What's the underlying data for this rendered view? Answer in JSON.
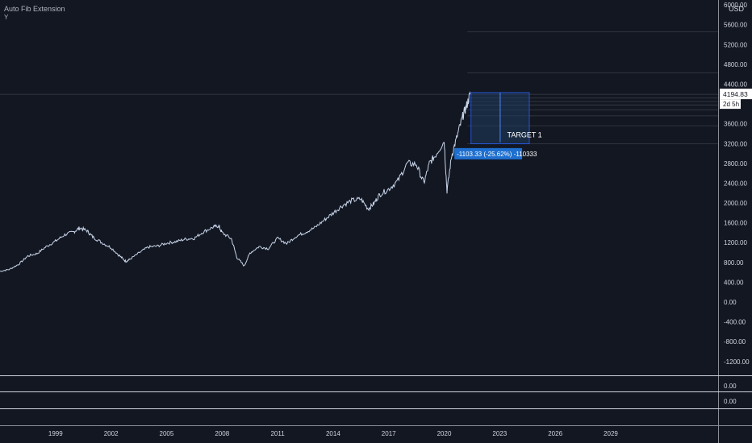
{
  "indicator": {
    "title": "Auto Fib Extension",
    "subtitle": "Y"
  },
  "currency": "USD",
  "price": {
    "last_label": "4194.83",
    "countdown": "2d 5h"
  },
  "annotation": {
    "target_label": "TARGET 1",
    "measure_label": "-1103.33 (-25.62%) -110333"
  },
  "sub_panes": [
    {
      "value_label": "0.00"
    },
    {
      "value_label": "0.00"
    }
  ],
  "colors": {
    "background": "#131722",
    "price_line": "#c8d6ea",
    "measure_fill": "#1f3a5f",
    "measure_stroke": "#2962ff",
    "label_bg": "#1e6fcf",
    "grid_line": "#3a3f4b"
  },
  "chart_data": {
    "type": "line",
    "series": [
      {
        "values_by_year": [
          [
            1996.0,
            620
          ],
          [
            1996.5,
            660
          ],
          [
            1997.0,
            760
          ],
          [
            1997.5,
            930
          ],
          [
            1998.0,
            980
          ],
          [
            1998.5,
            1120
          ],
          [
            1999.0,
            1230
          ],
          [
            1999.5,
            1360
          ],
          [
            2000.0,
            1420
          ],
          [
            2000.3,
            1500
          ],
          [
            2000.7,
            1440
          ],
          [
            2001.0,
            1320
          ],
          [
            2001.5,
            1200
          ],
          [
            2002.0,
            1100
          ],
          [
            2002.5,
            920
          ],
          [
            2002.8,
            820
          ],
          [
            2003.0,
            860
          ],
          [
            2003.5,
            990
          ],
          [
            2004.0,
            1110
          ],
          [
            2004.5,
            1130
          ],
          [
            2005.0,
            1190
          ],
          [
            2005.5,
            1220
          ],
          [
            2006.0,
            1270
          ],
          [
            2006.5,
            1290
          ],
          [
            2007.0,
            1420
          ],
          [
            2007.5,
            1510
          ],
          [
            2007.8,
            1540
          ],
          [
            2008.0,
            1400
          ],
          [
            2008.5,
            1280
          ],
          [
            2008.8,
            900
          ],
          [
            2009.2,
            730
          ],
          [
            2009.5,
            990
          ],
          [
            2010.0,
            1120
          ],
          [
            2010.5,
            1080
          ],
          [
            2011.0,
            1290
          ],
          [
            2011.5,
            1180
          ],
          [
            2012.0,
            1330
          ],
          [
            2012.5,
            1410
          ],
          [
            2013.0,
            1500
          ],
          [
            2013.5,
            1650
          ],
          [
            2014.0,
            1800
          ],
          [
            2014.5,
            1950
          ],
          [
            2015.0,
            2050
          ],
          [
            2015.5,
            2080
          ],
          [
            2015.9,
            1880
          ],
          [
            2016.2,
            1990
          ],
          [
            2016.5,
            2170
          ],
          [
            2017.0,
            2280
          ],
          [
            2017.5,
            2450
          ],
          [
            2018.0,
            2800
          ],
          [
            2018.5,
            2780
          ],
          [
            2018.9,
            2400
          ],
          [
            2019.2,
            2800
          ],
          [
            2019.5,
            2950
          ],
          [
            2020.0,
            3250
          ],
          [
            2020.15,
            2240
          ],
          [
            2020.4,
            2950
          ],
          [
            2020.7,
            3350
          ],
          [
            2021.0,
            3750
          ],
          [
            2021.2,
            3950
          ],
          [
            2021.4,
            4194.83
          ]
        ]
      }
    ],
    "x_ticks": [
      "1999",
      "2002",
      "2005",
      "2008",
      "2011",
      "2014",
      "2017",
      "2020",
      "2023",
      "2026",
      "2029"
    ],
    "x_tick_years": [
      1999,
      2002,
      2005,
      2008,
      2011,
      2014,
      2017,
      2020,
      2023,
      2026,
      2029
    ],
    "y_ticks": [
      "6000.00",
      "5600.00",
      "5200.00",
      "4800.00",
      "4400.00",
      "3600.00",
      "3200.00",
      "2800.00",
      "2400.00",
      "2000.00",
      "1600.00",
      "1200.00",
      "800.00",
      "400.00",
      "0.00",
      "-400.00",
      "-800.00",
      "-1200.00"
    ],
    "y_tick_values": [
      6000,
      5600,
      5200,
      4800,
      4400,
      3600,
      3200,
      2800,
      2400,
      2000,
      1600,
      1200,
      800,
      400,
      0,
      -400,
      -800,
      -1200
    ],
    "fib_levels": [
      5460,
      4630,
      4195,
      4120,
      4050,
      3980,
      3880,
      3760,
      3560,
      3195
    ],
    "measure": {
      "from_year": 2021.45,
      "to_year": 2024.6,
      "top": 4230,
      "bottom": 3195
    },
    "ylim": [
      -1480,
      6100
    ],
    "xlim": [
      1996.0,
      2034.8
    ],
    "legend": "none",
    "grid": false
  }
}
